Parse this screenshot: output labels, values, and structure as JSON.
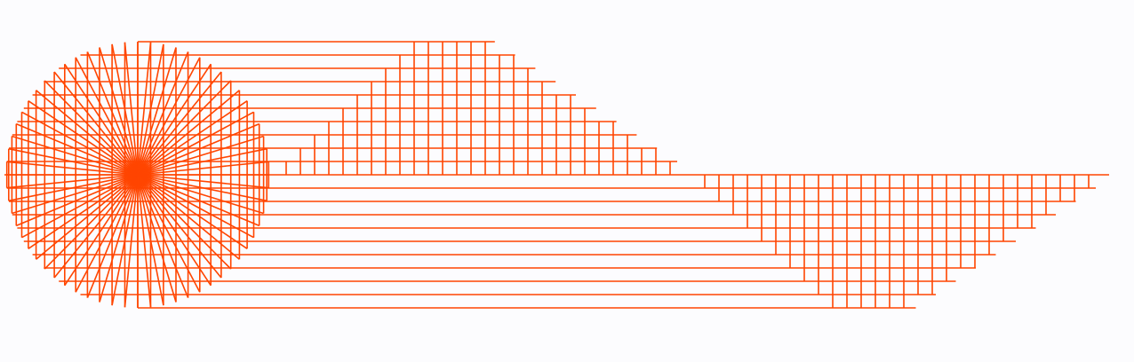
{
  "diagram": {
    "stroke_color": "#ff4500",
    "background_color": "#fcfcfe",
    "rays": 64,
    "upper_rows": 10,
    "lower_rows": 10
  }
}
